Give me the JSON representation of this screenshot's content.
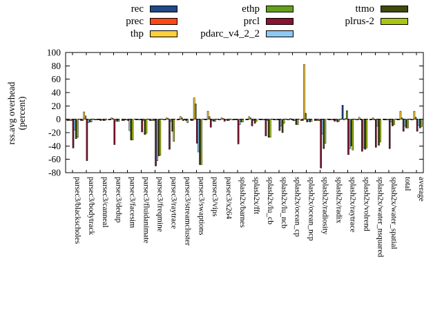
{
  "chart_data": {
    "type": "bar",
    "title": "",
    "xlabel": "",
    "ylabel": "rss.avg overhead (percent)",
    "ylabel_lines": [
      "rss.avg overhead",
      "(percent)"
    ],
    "ylim": [
      -80,
      100
    ],
    "yticks": [
      100,
      80,
      60,
      40,
      20,
      0,
      -20,
      -40,
      -60,
      -80
    ],
    "grid": false,
    "legend_position": "top",
    "zero_line": "dashed",
    "categories": [
      "parsec3/blackscholes",
      "parsec3/bodytrack",
      "parsec3/canneal",
      "parsec3/dedup",
      "parsec3/facesim",
      "parsec3/fluidanimate",
      "parsec3/freqmine",
      "parsec3/raytrace",
      "parsec3/streamcluster",
      "parsec3/swaptions",
      "parsec3/vips",
      "parsec3/x264",
      "splash2x/barnes",
      "splash2x/fft",
      "splash2x/lu_cb",
      "splash2x/lu_ncb",
      "splash2x/ocean_cp",
      "splash2x/ocean_ncp",
      "splash2x/radiosity",
      "splash2x/radix",
      "splash2x/raytrace",
      "splash2x/volrend",
      "splash2x/water_nsquared",
      "splash2x/water_spatial",
      "total",
      "average"
    ],
    "series": [
      {
        "name": "rec",
        "color": "#204a87",
        "values": [
          -2,
          -2,
          -1,
          -1,
          -2,
          -1,
          -2,
          -1,
          -1,
          -2,
          -1,
          -1,
          -1,
          -1,
          -1,
          -1,
          -1,
          -2,
          -2,
          -1,
          21,
          -1,
          -1,
          -1,
          -1,
          -1
        ]
      },
      {
        "name": "prec",
        "color": "#ff4815",
        "values": [
          -2,
          -2,
          -1,
          -1,
          -2,
          -1,
          -2,
          -1,
          -1,
          -2,
          -1,
          -1,
          -1,
          -1,
          -1,
          -1,
          -1,
          -2,
          -2,
          -1,
          -1,
          -1,
          -1,
          -1,
          -1,
          -1
        ]
      },
      {
        "name": "thp",
        "color": "#fccf3c",
        "values": [
          -2,
          11,
          -1,
          2,
          -1,
          -1,
          -2,
          2,
          4,
          32,
          12,
          2,
          -1,
          4,
          -1,
          -1,
          1,
          82,
          -2,
          -1,
          1,
          3,
          2,
          -1,
          12,
          12
        ]
      },
      {
        "name": "ethp",
        "color": "#64a019",
        "values": [
          -2,
          5,
          -1,
          1,
          -1,
          -1,
          -2,
          1,
          2,
          23,
          4,
          1,
          -1,
          2,
          -1,
          -1,
          -1,
          9,
          -2,
          -1,
          13,
          -1,
          -1,
          -1,
          2,
          3
        ]
      },
      {
        "name": "prcl",
        "color": "#871431",
        "values": [
          -43,
          -62,
          -2,
          -38,
          -2,
          -19,
          -70,
          -45,
          -2,
          -36,
          -12,
          -3,
          -37,
          -10,
          -25,
          -17,
          -2,
          -4,
          -73,
          -3,
          -53,
          -48,
          -42,
          -44,
          -18,
          -18
        ]
      },
      {
        "name": "pdarc_v4_2_2",
        "color": "#8dc8f2",
        "values": [
          -16,
          -5,
          -1,
          -3,
          -17,
          -2,
          -62,
          -3,
          -1,
          -49,
          -2,
          -1,
          -8,
          -2,
          -2,
          -10,
          -2,
          -3,
          -22,
          -2,
          -44,
          -43,
          -10,
          -4,
          -10,
          -9
        ]
      },
      {
        "name": "ttmo",
        "color": "#3f4a0b",
        "values": [
          -29,
          -4,
          -2,
          -3,
          -31,
          -23,
          -55,
          -18,
          -2,
          -68,
          -3,
          -2,
          -4,
          -6,
          -27,
          -20,
          -8,
          -4,
          -44,
          -4,
          -40,
          -45,
          -39,
          -10,
          -13,
          -13
        ]
      },
      {
        "name": "plrus-2",
        "color": "#abc414",
        "values": [
          -27,
          -4,
          -2,
          -3,
          -31,
          -21,
          -54,
          -33,
          -5,
          -68,
          -3,
          -2,
          -4,
          -3,
          -27,
          -6,
          -8,
          -3,
          -36,
          -3,
          -46,
          -43,
          -34,
          -8,
          -13,
          -11
        ]
      }
    ]
  }
}
